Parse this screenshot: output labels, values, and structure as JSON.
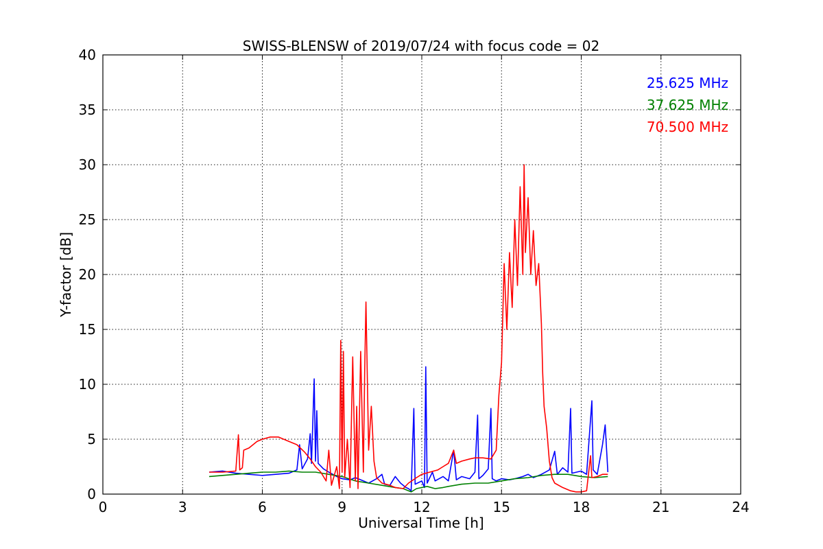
{
  "chart_data": {
    "type": "line",
    "title": "SWISS-BLENSW of 2019/07/24 with focus code = 02",
    "xlabel": "Universal Time [h]",
    "ylabel": "Y-factor [dB]",
    "xlim": [
      0,
      24
    ],
    "ylim": [
      0,
      40
    ],
    "xticks": [
      0,
      3,
      6,
      9,
      12,
      15,
      18,
      21,
      24
    ],
    "yticks": [
      0,
      5,
      10,
      15,
      20,
      25,
      30,
      35,
      40
    ],
    "xtick_labels": [
      "0",
      "3",
      "6",
      "9",
      "12",
      "15",
      "18",
      "21",
      "24"
    ],
    "ytick_labels": [
      "0",
      "5",
      "10",
      "15",
      "20",
      "25",
      "30",
      "35",
      "40"
    ],
    "grid": true,
    "legend_position": "top-right",
    "series": [
      {
        "name": "25.625 MHz",
        "color": "#0000ff",
        "points": [
          [
            4.0,
            2.0
          ],
          [
            4.5,
            2.1
          ],
          [
            5.0,
            1.9
          ],
          [
            5.5,
            1.8
          ],
          [
            6.0,
            1.7
          ],
          [
            6.5,
            1.8
          ],
          [
            7.0,
            1.9
          ],
          [
            7.3,
            2.2
          ],
          [
            7.4,
            4.5
          ],
          [
            7.5,
            2.3
          ],
          [
            7.7,
            3.2
          ],
          [
            7.8,
            5.5
          ],
          [
            7.85,
            2.8
          ],
          [
            7.95,
            10.5
          ],
          [
            8.0,
            3.0
          ],
          [
            8.05,
            7.6
          ],
          [
            8.1,
            2.8
          ],
          [
            8.3,
            2.3
          ],
          [
            8.5,
            2.0
          ],
          [
            8.8,
            1.6
          ],
          [
            9.0,
            1.4
          ],
          [
            9.3,
            1.3
          ],
          [
            9.5,
            1.5
          ],
          [
            9.8,
            1.2
          ],
          [
            10.0,
            1.0
          ],
          [
            10.3,
            1.4
          ],
          [
            10.5,
            1.8
          ],
          [
            10.6,
            0.9
          ],
          [
            10.8,
            0.8
          ],
          [
            11.0,
            1.6
          ],
          [
            11.2,
            1.0
          ],
          [
            11.4,
            0.6
          ],
          [
            11.5,
            0.5
          ],
          [
            11.6,
            0.3
          ],
          [
            11.7,
            7.8
          ],
          [
            11.75,
            0.9
          ],
          [
            12.0,
            1.2
          ],
          [
            12.1,
            0.6
          ],
          [
            12.15,
            11.6
          ],
          [
            12.2,
            1.0
          ],
          [
            12.4,
            2.0
          ],
          [
            12.5,
            1.2
          ],
          [
            12.8,
            1.6
          ],
          [
            13.0,
            1.2
          ],
          [
            13.2,
            4.0
          ],
          [
            13.3,
            1.3
          ],
          [
            13.5,
            1.6
          ],
          [
            13.8,
            1.4
          ],
          [
            14.0,
            2.0
          ],
          [
            14.1,
            7.2
          ],
          [
            14.15,
            1.4
          ],
          [
            14.3,
            1.7
          ],
          [
            14.5,
            2.3
          ],
          [
            14.6,
            7.8
          ],
          [
            14.65,
            1.4
          ],
          [
            14.8,
            1.2
          ],
          [
            15.0,
            1.4
          ],
          [
            15.3,
            1.3
          ],
          [
            15.5,
            1.4
          ],
          [
            15.8,
            1.6
          ],
          [
            16.0,
            1.8
          ],
          [
            16.2,
            1.5
          ],
          [
            16.5,
            1.8
          ],
          [
            16.8,
            2.2
          ],
          [
            17.0,
            3.9
          ],
          [
            17.1,
            1.8
          ],
          [
            17.3,
            2.4
          ],
          [
            17.5,
            2.0
          ],
          [
            17.6,
            7.8
          ],
          [
            17.65,
            1.9
          ],
          [
            18.0,
            2.1
          ],
          [
            18.2,
            1.8
          ],
          [
            18.4,
            8.5
          ],
          [
            18.45,
            2.2
          ],
          [
            18.6,
            1.8
          ],
          [
            18.8,
            4.5
          ],
          [
            18.9,
            6.3
          ],
          [
            19.0,
            2.0
          ]
        ]
      },
      {
        "name": "37.625 MHz",
        "color": "#008000",
        "points": [
          [
            4.0,
            1.6
          ],
          [
            4.5,
            1.7
          ],
          [
            5.0,
            1.8
          ],
          [
            5.5,
            1.9
          ],
          [
            6.0,
            2.0
          ],
          [
            6.5,
            2.0
          ],
          [
            7.0,
            2.1
          ],
          [
            7.5,
            2.0
          ],
          [
            8.0,
            2.0
          ],
          [
            8.5,
            1.8
          ],
          [
            9.0,
            1.6
          ],
          [
            9.5,
            1.2
          ],
          [
            10.0,
            1.0
          ],
          [
            10.5,
            0.8
          ],
          [
            11.0,
            0.6
          ],
          [
            11.3,
            0.5
          ],
          [
            11.6,
            0.2
          ],
          [
            11.8,
            0.5
          ],
          [
            12.0,
            0.6
          ],
          [
            12.2,
            0.7
          ],
          [
            12.5,
            0.5
          ],
          [
            12.8,
            0.6
          ],
          [
            13.0,
            0.7
          ],
          [
            13.5,
            0.9
          ],
          [
            14.0,
            1.0
          ],
          [
            14.5,
            1.0
          ],
          [
            15.0,
            1.2
          ],
          [
            15.5,
            1.4
          ],
          [
            16.0,
            1.5
          ],
          [
            16.5,
            1.7
          ],
          [
            17.0,
            1.8
          ],
          [
            17.5,
            1.8
          ],
          [
            18.0,
            1.6
          ],
          [
            18.5,
            1.5
          ],
          [
            19.0,
            1.6
          ]
        ]
      },
      {
        "name": "70.500 MHz",
        "color": "#ff0000",
        "points": [
          [
            4.0,
            2.0
          ],
          [
            4.5,
            2.0
          ],
          [
            5.0,
            2.1
          ],
          [
            5.1,
            5.4
          ],
          [
            5.15,
            2.2
          ],
          [
            5.25,
            2.4
          ],
          [
            5.3,
            4.0
          ],
          [
            5.5,
            4.2
          ],
          [
            5.8,
            4.8
          ],
          [
            6.0,
            5.0
          ],
          [
            6.3,
            5.2
          ],
          [
            6.6,
            5.2
          ],
          [
            7.0,
            4.8
          ],
          [
            7.3,
            4.5
          ],
          [
            7.6,
            3.8
          ],
          [
            7.8,
            3.2
          ],
          [
            8.0,
            2.5
          ],
          [
            8.2,
            2.0
          ],
          [
            8.4,
            1.2
          ],
          [
            8.5,
            4.0
          ],
          [
            8.6,
            0.8
          ],
          [
            8.8,
            2.5
          ],
          [
            8.9,
            0.5
          ],
          [
            8.95,
            14.0
          ],
          [
            9.0,
            2.0
          ],
          [
            9.05,
            13.0
          ],
          [
            9.1,
            1.5
          ],
          [
            9.2,
            5.0
          ],
          [
            9.3,
            0.6
          ],
          [
            9.4,
            12.5
          ],
          [
            9.5,
            1.2
          ],
          [
            9.55,
            8.0
          ],
          [
            9.6,
            0.5
          ],
          [
            9.7,
            13.0
          ],
          [
            9.8,
            2.0
          ],
          [
            9.85,
            11.0
          ],
          [
            9.9,
            17.5
          ],
          [
            10.0,
            4.0
          ],
          [
            10.1,
            8.0
          ],
          [
            10.2,
            3.0
          ],
          [
            10.3,
            1.5
          ],
          [
            10.5,
            1.0
          ],
          [
            10.8,
            0.8
          ],
          [
            11.0,
            0.6
          ],
          [
            11.3,
            0.5
          ],
          [
            11.5,
            1.0
          ],
          [
            11.8,
            1.5
          ],
          [
            12.0,
            1.8
          ],
          [
            12.3,
            2.0
          ],
          [
            12.6,
            2.2
          ],
          [
            12.8,
            2.5
          ],
          [
            13.0,
            2.8
          ],
          [
            13.2,
            4.0
          ],
          [
            13.3,
            2.8
          ],
          [
            13.5,
            3.0
          ],
          [
            13.8,
            3.2
          ],
          [
            14.0,
            3.3
          ],
          [
            14.3,
            3.3
          ],
          [
            14.6,
            3.2
          ],
          [
            14.8,
            4.0
          ],
          [
            14.9,
            9.0
          ],
          [
            15.0,
            12.0
          ],
          [
            15.1,
            21.0
          ],
          [
            15.2,
            15.0
          ],
          [
            15.3,
            22.0
          ],
          [
            15.4,
            17.0
          ],
          [
            15.5,
            25.0
          ],
          [
            15.6,
            19.0
          ],
          [
            15.7,
            28.0
          ],
          [
            15.8,
            20.0
          ],
          [
            15.85,
            30.0
          ],
          [
            15.9,
            22.0
          ],
          [
            16.0,
            27.0
          ],
          [
            16.1,
            20.0
          ],
          [
            16.2,
            24.0
          ],
          [
            16.3,
            19.0
          ],
          [
            16.4,
            21.0
          ],
          [
            16.5,
            15.5
          ],
          [
            16.55,
            11.0
          ],
          [
            16.6,
            8.0
          ],
          [
            16.7,
            6.0
          ],
          [
            16.8,
            3.0
          ],
          [
            16.9,
            1.5
          ],
          [
            17.0,
            1.0
          ],
          [
            17.3,
            0.6
          ],
          [
            17.6,
            0.3
          ],
          [
            17.8,
            0.2
          ],
          [
            18.0,
            0.2
          ],
          [
            18.2,
            0.3
          ],
          [
            18.35,
            3.5
          ],
          [
            18.4,
            1.5
          ],
          [
            18.6,
            1.6
          ],
          [
            18.8,
            1.8
          ],
          [
            19.0,
            1.8
          ]
        ]
      }
    ]
  }
}
